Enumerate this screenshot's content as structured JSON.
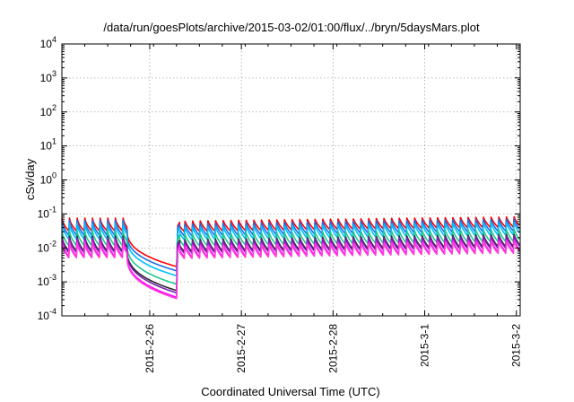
{
  "chart_data": {
    "type": "line",
    "title": "/data/run/goesPlots/archive/2015-03-02/01:00/flux/../bryn/5daysMars.plot",
    "xlabel": "Coordinated Universal Time (UTC)",
    "ylabel": "cSv/day",
    "yscale": "log",
    "xlim": [
      "2015-02-25T01:00",
      "2015-03-02T01:00"
    ],
    "ylim": [
      0.0001,
      10000
    ],
    "grid": true,
    "x_ticks": [
      "2015-2-26",
      "2015-2-27",
      "2015-2-28",
      "2015-3-1",
      "2015-3-2"
    ],
    "y_ticks": [
      {
        "value": 0.0001,
        "base": "10",
        "exp": "-4"
      },
      {
        "value": 0.001,
        "base": "10",
        "exp": "-3"
      },
      {
        "value": 0.01,
        "base": "10",
        "exp": "-2"
      },
      {
        "value": 0.1,
        "base": "10",
        "exp": "-1"
      },
      {
        "value": 1,
        "base": "10",
        "exp": "0"
      },
      {
        "value": 10,
        "base": "10",
        "exp": "1"
      },
      {
        "value": 100,
        "base": "10",
        "exp": "2"
      },
      {
        "value": 1000,
        "base": "10",
        "exp": "3"
      },
      {
        "value": 10000,
        "base": "10",
        "exp": "4"
      }
    ],
    "shape": {
      "period_days": 0.0835,
      "gap_start": "2015-02-25T18:00",
      "gap_min": "2015-02-26T07:10",
      "gap_end": "2015-02-26T07:20",
      "recover_peak": "2015-02-26T07:50"
    },
    "series": [
      {
        "color": "#ff0000",
        "peak": 0.075,
        "trough": 0.03,
        "gap_low": 0.0028,
        "trend": 1.35
      },
      {
        "color": "#1e6fe0",
        "peak": 0.065,
        "trough": 0.022,
        "gap_low": 0.0021,
        "trend": 1.4
      },
      {
        "color": "#00bfff",
        "peak": 0.052,
        "trough": 0.017,
        "gap_low": 0.0015,
        "trend": 1.4
      },
      {
        "color": "#20c890",
        "peak": 0.032,
        "trough": 0.011,
        "gap_low": 0.00085,
        "trend": 1.4
      },
      {
        "color": "#2a2a2a",
        "peak": 0.022,
        "trough": 0.0075,
        "gap_low": 0.00055,
        "trend": 1.45
      },
      {
        "color": "#7a1fb0",
        "peak": 0.02,
        "trough": 0.0068,
        "gap_low": 0.00047,
        "trend": 1.45
      },
      {
        "color": "#ff00ff",
        "peak": 0.016,
        "trough": 0.0052,
        "gap_low": 0.00035,
        "trend": 1.45
      },
      {
        "color": "#ff3fd8",
        "peak": 0.014,
        "trough": 0.0048,
        "gap_low": 0.00032,
        "trend": 1.45
      }
    ]
  }
}
